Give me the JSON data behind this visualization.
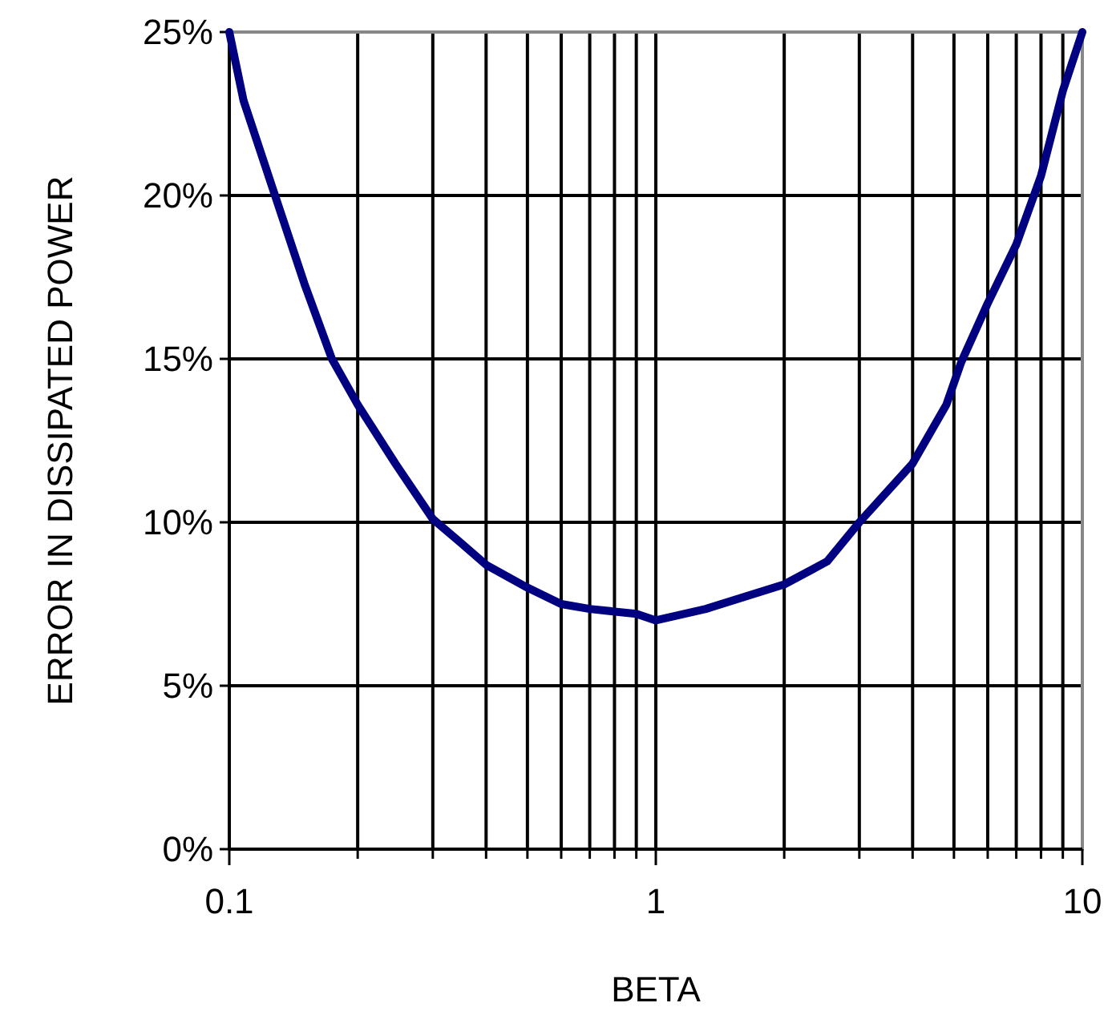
{
  "chart_data": {
    "type": "line",
    "xlabel": "BETA",
    "ylabel": "ERROR IN DISSIPATED POWER",
    "log": "x",
    "grid": true,
    "xlim": [
      0.1,
      10
    ],
    "ylim": [
      0,
      25
    ],
    "xticks": [
      0.1,
      {
        "value": 0.2,
        "label": null
      },
      {
        "value": 0.3,
        "label": null
      },
      {
        "value": 0.4,
        "label": null
      },
      {
        "value": 0.5,
        "label": null
      },
      {
        "value": 0.6,
        "label": null
      },
      {
        "value": 0.7,
        "label": null
      },
      {
        "value": 0.8,
        "label": null
      },
      {
        "value": 0.9,
        "label": null
      },
      1,
      {
        "value": 2,
        "label": null
      },
      {
        "value": 3,
        "label": null
      },
      {
        "value": 4,
        "label": null
      },
      {
        "value": 5,
        "label": null
      },
      {
        "value": 6,
        "label": null
      },
      {
        "value": 7,
        "label": null
      },
      {
        "value": 8,
        "label": null
      },
      {
        "value": 9,
        "label": null
      },
      10
    ],
    "yticks": [
      {
        "value": 0,
        "label": "0%"
      },
      {
        "value": 5,
        "label": "5%"
      },
      {
        "value": 10,
        "label": "10%"
      },
      {
        "value": 15,
        "label": "15%"
      },
      {
        "value": 20,
        "label": "20%"
      },
      {
        "value": 25,
        "label": "25%"
      }
    ],
    "series": [
      {
        "color": "#000080",
        "x": [
          0.1,
          0.108,
          0.128,
          0.15,
          0.174,
          0.2,
          0.245,
          0.3,
          0.347,
          0.4,
          0.5,
          0.6,
          0.7,
          0.9,
          1,
          1.31,
          2,
          2.52,
          3,
          4,
          4.8,
          5.2,
          6,
          7,
          8,
          9,
          10
        ],
        "values": [
          25,
          22.9,
          20,
          17.3,
          15,
          13.6,
          11.8,
          10.1,
          9.4,
          8.7,
          8,
          7.5,
          7.35,
          7.2,
          7,
          7.35,
          8.1,
          8.8,
          10,
          11.8,
          13.6,
          14.9,
          16.7,
          18.5,
          20.6,
          23.2,
          25
        ]
      }
    ]
  }
}
